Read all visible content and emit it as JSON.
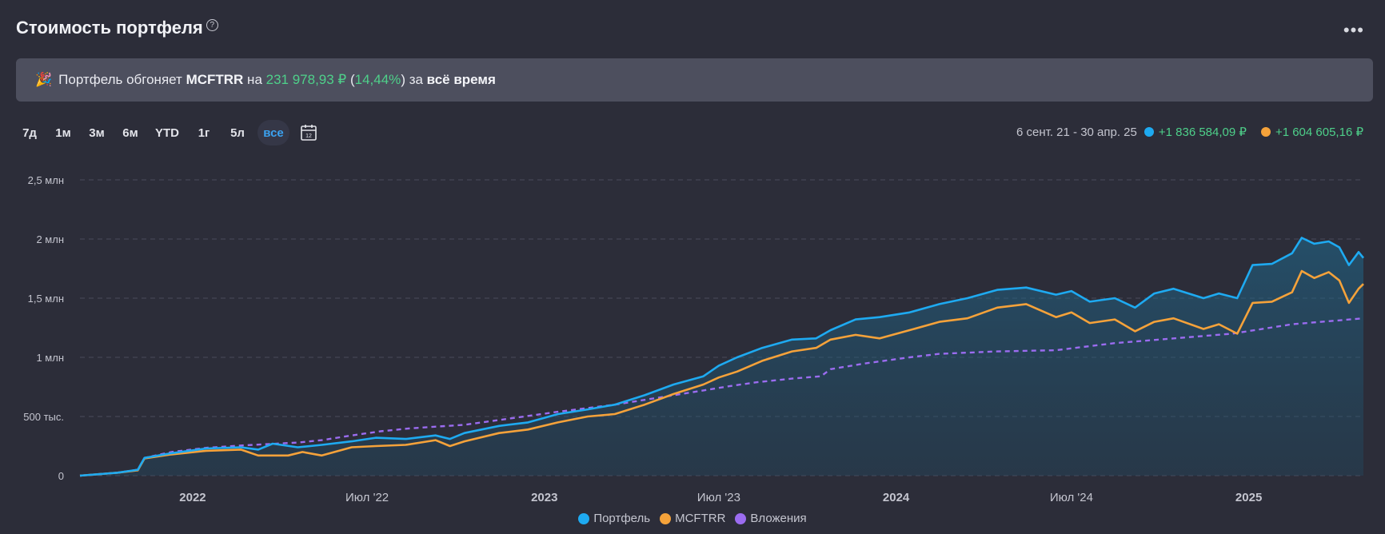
{
  "header": {
    "title": "Стоимость портфеля",
    "help_icon": "?",
    "more_icon": "•••"
  },
  "banner": {
    "icon": "party-popper-icon",
    "prefix": "Портфель обгоняет ",
    "index": "MCFTRR",
    "mid": " на ",
    "amount": "231 978,93 ₽",
    "open": " (",
    "pct": "14,44%",
    "close": ") за ",
    "period": "всё время"
  },
  "periods": [
    "7д",
    "1м",
    "3м",
    "6м",
    "YTD",
    "1г",
    "5л",
    "все"
  ],
  "active_period": "все",
  "summary": {
    "range": "6 сент. 21 - 30 апр. 25",
    "portfolio_gain": "+1 836 584,09 ₽",
    "index_gain": "+1 604 605,16 ₽"
  },
  "colors": {
    "portfolio": "#1eaaf1",
    "index": "#f5a23a",
    "invested": "#9b6cf0",
    "gain": "#4ed08a",
    "background": "#2c2d39"
  },
  "chart_data": {
    "type": "area",
    "y_ticks": [
      0,
      500000,
      1000000,
      1500000,
      2000000,
      2500000
    ],
    "y_tick_labels": [
      "0",
      "500 тыс.",
      "1 млн",
      "1,5 млн",
      "2 млн",
      "2,5 млн"
    ],
    "ylim": [
      0,
      2500000
    ],
    "x_range": [
      "2021-09-06",
      "2025-04-30"
    ],
    "x_ticks": [
      {
        "date": "2022-01-01",
        "label": "2022"
      },
      {
        "date": "2022-07-01",
        "label": "Июл '22"
      },
      {
        "date": "2023-01-01",
        "label": "2023"
      },
      {
        "date": "2023-07-01",
        "label": "Июл '23"
      },
      {
        "date": "2024-01-01",
        "label": "2024"
      },
      {
        "date": "2024-07-01",
        "label": "Июл '24"
      },
      {
        "date": "2025-01-01",
        "label": "2025"
      }
    ],
    "grid": true,
    "legend_position": "bottom",
    "series": [
      {
        "name": "Портфель",
        "style": "area",
        "points": [
          [
            "2021-09-06",
            0
          ],
          [
            "2021-10-15",
            25000
          ],
          [
            "2021-11-05",
            50000
          ],
          [
            "2021-11-12",
            150000
          ],
          [
            "2021-12-10",
            190000
          ],
          [
            "2022-01-15",
            230000
          ],
          [
            "2022-02-20",
            240000
          ],
          [
            "2022-03-10",
            220000
          ],
          [
            "2022-03-25",
            270000
          ],
          [
            "2022-04-20",
            240000
          ],
          [
            "2022-05-15",
            260000
          ],
          [
            "2022-06-15",
            290000
          ],
          [
            "2022-07-10",
            320000
          ],
          [
            "2022-08-10",
            310000
          ],
          [
            "2022-09-10",
            340000
          ],
          [
            "2022-09-25",
            310000
          ],
          [
            "2022-10-10",
            360000
          ],
          [
            "2022-11-15",
            420000
          ],
          [
            "2022-12-15",
            450000
          ],
          [
            "2023-01-15",
            520000
          ],
          [
            "2023-02-15",
            560000
          ],
          [
            "2023-03-15",
            600000
          ],
          [
            "2023-04-15",
            680000
          ],
          [
            "2023-05-15",
            770000
          ],
          [
            "2023-06-15",
            840000
          ],
          [
            "2023-07-01",
            930000
          ],
          [
            "2023-07-20",
            1000000
          ],
          [
            "2023-08-15",
            1080000
          ],
          [
            "2023-09-15",
            1150000
          ],
          [
            "2023-10-10",
            1160000
          ],
          [
            "2023-10-25",
            1230000
          ],
          [
            "2023-11-20",
            1320000
          ],
          [
            "2023-12-15",
            1340000
          ],
          [
            "2024-01-15",
            1380000
          ],
          [
            "2024-02-15",
            1450000
          ],
          [
            "2024-03-15",
            1500000
          ],
          [
            "2024-04-15",
            1570000
          ],
          [
            "2024-05-15",
            1590000
          ],
          [
            "2024-06-15",
            1530000
          ],
          [
            "2024-07-01",
            1560000
          ],
          [
            "2024-07-20",
            1470000
          ],
          [
            "2024-08-15",
            1500000
          ],
          [
            "2024-09-05",
            1420000
          ],
          [
            "2024-09-25",
            1540000
          ],
          [
            "2024-10-15",
            1580000
          ],
          [
            "2024-11-15",
            1500000
          ],
          [
            "2024-12-01",
            1540000
          ],
          [
            "2024-12-20",
            1500000
          ],
          [
            "2025-01-05",
            1780000
          ],
          [
            "2025-01-25",
            1790000
          ],
          [
            "2025-02-15",
            1880000
          ],
          [
            "2025-02-25",
            2010000
          ],
          [
            "2025-03-10",
            1960000
          ],
          [
            "2025-03-25",
            1980000
          ],
          [
            "2025-04-05",
            1930000
          ],
          [
            "2025-04-15",
            1780000
          ],
          [
            "2025-04-25",
            1890000
          ],
          [
            "2025-04-30",
            1840000
          ]
        ]
      },
      {
        "name": "MCFTRR",
        "style": "line",
        "points": [
          [
            "2021-09-06",
            0
          ],
          [
            "2021-10-15",
            25000
          ],
          [
            "2021-11-05",
            45000
          ],
          [
            "2021-11-12",
            145000
          ],
          [
            "2021-12-10",
            180000
          ],
          [
            "2022-01-15",
            210000
          ],
          [
            "2022-02-20",
            220000
          ],
          [
            "2022-03-10",
            170000
          ],
          [
            "2022-04-10",
            170000
          ],
          [
            "2022-04-25",
            200000
          ],
          [
            "2022-05-15",
            170000
          ],
          [
            "2022-06-15",
            240000
          ],
          [
            "2022-07-10",
            250000
          ],
          [
            "2022-08-10",
            260000
          ],
          [
            "2022-09-10",
            300000
          ],
          [
            "2022-09-25",
            250000
          ],
          [
            "2022-10-10",
            290000
          ],
          [
            "2022-11-15",
            360000
          ],
          [
            "2022-12-15",
            390000
          ],
          [
            "2023-01-15",
            450000
          ],
          [
            "2023-02-15",
            500000
          ],
          [
            "2023-03-15",
            520000
          ],
          [
            "2023-04-15",
            600000
          ],
          [
            "2023-05-15",
            690000
          ],
          [
            "2023-06-15",
            770000
          ],
          [
            "2023-07-01",
            830000
          ],
          [
            "2023-07-20",
            880000
          ],
          [
            "2023-08-15",
            970000
          ],
          [
            "2023-09-15",
            1050000
          ],
          [
            "2023-10-10",
            1080000
          ],
          [
            "2023-10-25",
            1150000
          ],
          [
            "2023-11-20",
            1190000
          ],
          [
            "2023-12-15",
            1160000
          ],
          [
            "2024-01-15",
            1230000
          ],
          [
            "2024-02-15",
            1300000
          ],
          [
            "2024-03-15",
            1330000
          ],
          [
            "2024-04-15",
            1420000
          ],
          [
            "2024-05-15",
            1450000
          ],
          [
            "2024-06-15",
            1340000
          ],
          [
            "2024-07-01",
            1380000
          ],
          [
            "2024-07-20",
            1290000
          ],
          [
            "2024-08-15",
            1320000
          ],
          [
            "2024-09-05",
            1220000
          ],
          [
            "2024-09-25",
            1300000
          ],
          [
            "2024-10-15",
            1330000
          ],
          [
            "2024-11-15",
            1240000
          ],
          [
            "2024-12-01",
            1280000
          ],
          [
            "2024-12-20",
            1200000
          ],
          [
            "2025-01-05",
            1460000
          ],
          [
            "2025-01-25",
            1470000
          ],
          [
            "2025-02-15",
            1550000
          ],
          [
            "2025-02-25",
            1730000
          ],
          [
            "2025-03-10",
            1670000
          ],
          [
            "2025-03-25",
            1720000
          ],
          [
            "2025-04-05",
            1650000
          ],
          [
            "2025-04-15",
            1460000
          ],
          [
            "2025-04-25",
            1580000
          ],
          [
            "2025-04-30",
            1620000
          ]
        ]
      },
      {
        "name": "Вложения",
        "style": "dashed",
        "points": [
          [
            "2021-09-06",
            0
          ],
          [
            "2021-10-15",
            25000
          ],
          [
            "2021-11-05",
            50000
          ],
          [
            "2021-11-12",
            150000
          ],
          [
            "2021-12-10",
            200000
          ],
          [
            "2022-01-15",
            235000
          ],
          [
            "2022-02-20",
            255000
          ],
          [
            "2022-04-20",
            280000
          ],
          [
            "2022-05-15",
            300000
          ],
          [
            "2022-06-15",
            340000
          ],
          [
            "2022-07-15",
            375000
          ],
          [
            "2022-08-15",
            400000
          ],
          [
            "2022-10-10",
            430000
          ],
          [
            "2022-11-15",
            470000
          ],
          [
            "2023-01-15",
            540000
          ],
          [
            "2023-03-15",
            600000
          ],
          [
            "2023-05-15",
            680000
          ],
          [
            "2023-06-15",
            720000
          ],
          [
            "2023-07-15",
            760000
          ],
          [
            "2023-08-10",
            790000
          ],
          [
            "2023-09-15",
            820000
          ],
          [
            "2023-10-15",
            840000
          ],
          [
            "2023-10-25",
            900000
          ],
          [
            "2023-12-01",
            950000
          ],
          [
            "2024-01-15",
            1000000
          ],
          [
            "2024-02-15",
            1030000
          ],
          [
            "2024-04-15",
            1050000
          ],
          [
            "2024-06-15",
            1060000
          ],
          [
            "2024-08-15",
            1120000
          ],
          [
            "2024-10-15",
            1160000
          ],
          [
            "2024-12-15",
            1200000
          ],
          [
            "2025-02-15",
            1280000
          ],
          [
            "2025-04-30",
            1330000
          ]
        ]
      }
    ]
  },
  "legend": [
    {
      "name": "Портфель",
      "color": "#1eaaf1"
    },
    {
      "name": "MCFTRR",
      "color": "#f5a23a"
    },
    {
      "name": "Вложения",
      "color": "#9b6cf0"
    }
  ]
}
